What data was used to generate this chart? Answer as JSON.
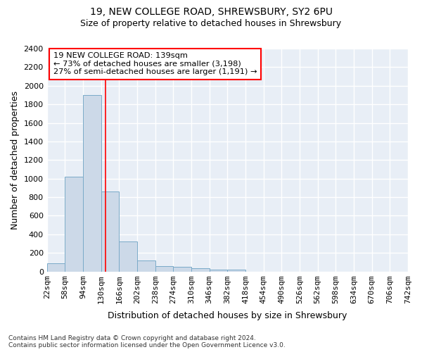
{
  "title1": "19, NEW COLLEGE ROAD, SHREWSBURY, SY2 6PU",
  "title2": "Size of property relative to detached houses in Shrewsbury",
  "xlabel": "Distribution of detached houses by size in Shrewsbury",
  "ylabel": "Number of detached properties",
  "bar_color": "#ccd9e8",
  "bar_edge_color": "#7aaac8",
  "background_color": "#e8eef6",
  "grid_color": "#ffffff",
  "red_line_x": 139,
  "annotation_text": "19 NEW COLLEGE ROAD: 139sqm\n← 73% of detached houses are smaller (3,198)\n27% of semi-detached houses are larger (1,191) →",
  "bin_edges": [
    22,
    58,
    94,
    130,
    166,
    202,
    238,
    274,
    310,
    346,
    382,
    418,
    454,
    490,
    526,
    562,
    598,
    634,
    670,
    706,
    742
  ],
  "bin_counts": [
    90,
    1020,
    1900,
    860,
    320,
    115,
    55,
    50,
    35,
    20,
    20,
    0,
    0,
    0,
    0,
    0,
    0,
    0,
    0,
    0
  ],
  "ylim": [
    0,
    2400
  ],
  "yticks": [
    0,
    200,
    400,
    600,
    800,
    1000,
    1200,
    1400,
    1600,
    1800,
    2000,
    2200,
    2400
  ],
  "footer_text": "Contains HM Land Registry data © Crown copyright and database right 2024.\nContains public sector information licensed under the Open Government Licence v3.0.",
  "title_fontsize": 10,
  "subtitle_fontsize": 9,
  "axis_label_fontsize": 9,
  "tick_fontsize": 8,
  "footer_fontsize": 6.5
}
